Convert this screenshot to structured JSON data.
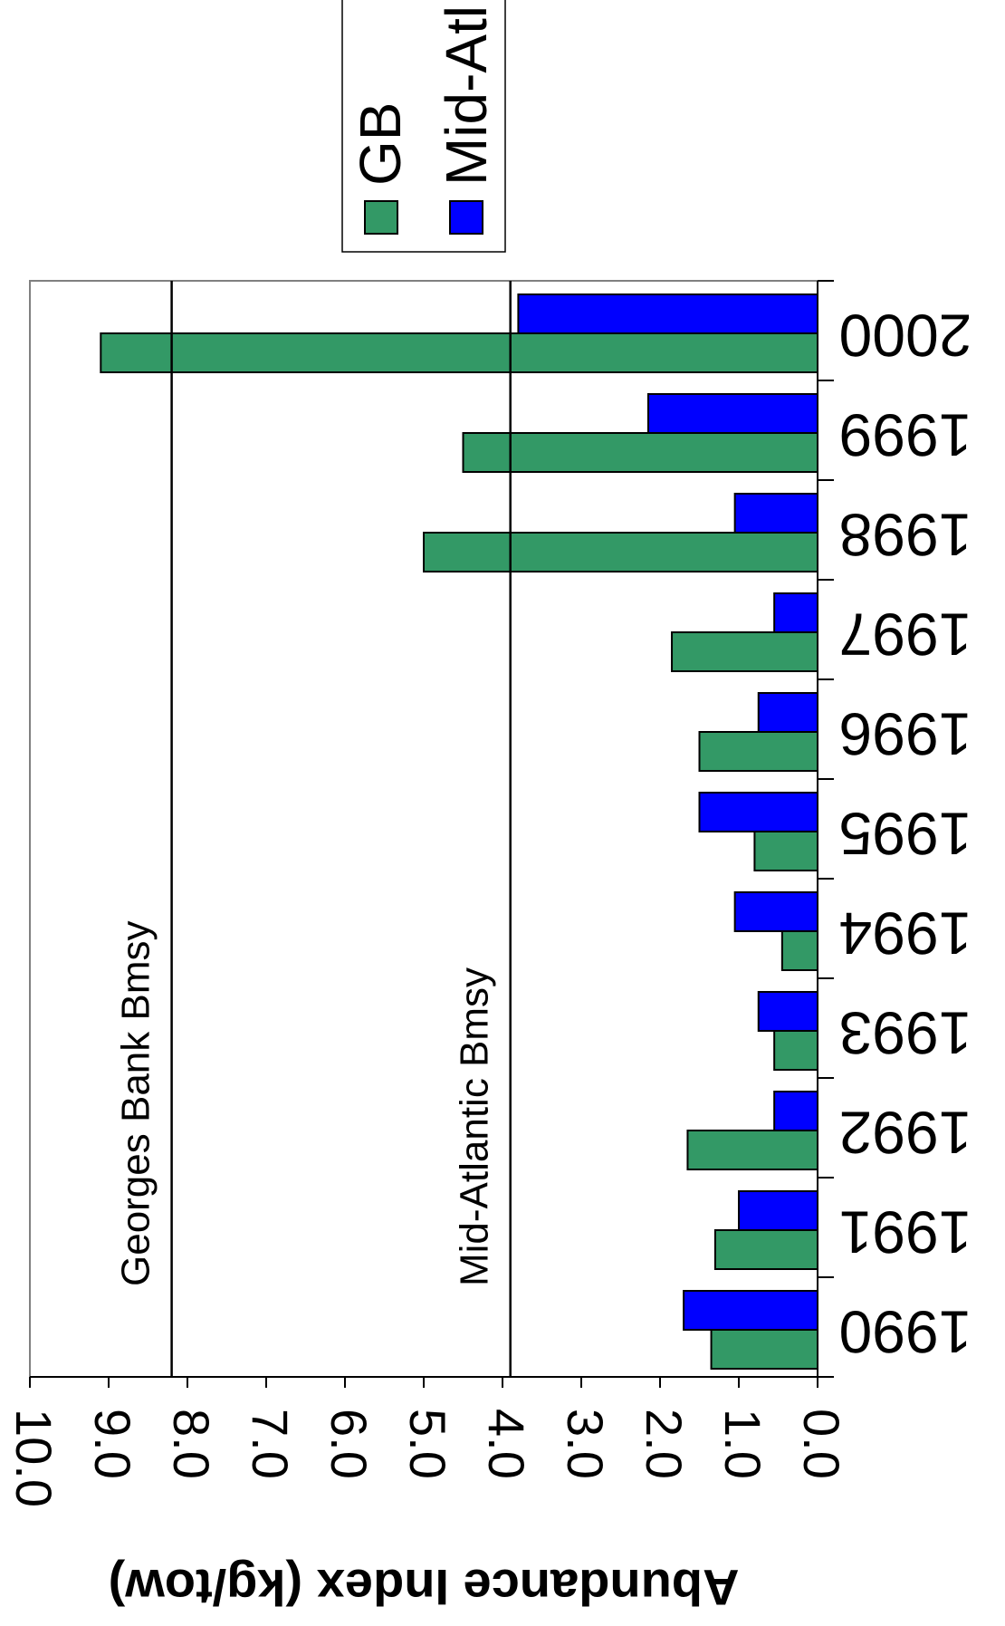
{
  "chart_data": {
    "type": "bar",
    "orientation": "rotated",
    "categories": [
      "1990",
      "1991",
      "1992",
      "1993",
      "1994",
      "1995",
      "1996",
      "1997",
      "1998",
      "1999",
      "2000"
    ],
    "series": [
      {
        "name": "GB",
        "values": [
          1.35,
          1.3,
          1.65,
          0.55,
          0.45,
          0.8,
          1.5,
          1.85,
          5.0,
          4.5,
          9.1
        ],
        "color": "#339966"
      },
      {
        "name": "Mid-Atl",
        "values": [
          1.7,
          1.0,
          0.55,
          0.75,
          1.05,
          1.5,
          0.75,
          0.55,
          1.05,
          2.15,
          3.8
        ],
        "color": "#0000ff"
      }
    ],
    "ylabel": "Abundance Index (kg/tow)",
    "xlabel": "",
    "ylim": [
      0,
      10
    ],
    "yticks": [
      "0.0",
      "1.0",
      "2.0",
      "3.0",
      "4.0",
      "5.0",
      "6.0",
      "7.0",
      "8.0",
      "9.0",
      "10.0"
    ],
    "reference_lines": [
      {
        "label": "Georges Bank  Bmsy",
        "value": 8.2
      },
      {
        "label": "Mid-Atlantic Bmsy",
        "value": 3.9
      }
    ],
    "legend": {
      "position": "top-right"
    },
    "grid": false
  }
}
